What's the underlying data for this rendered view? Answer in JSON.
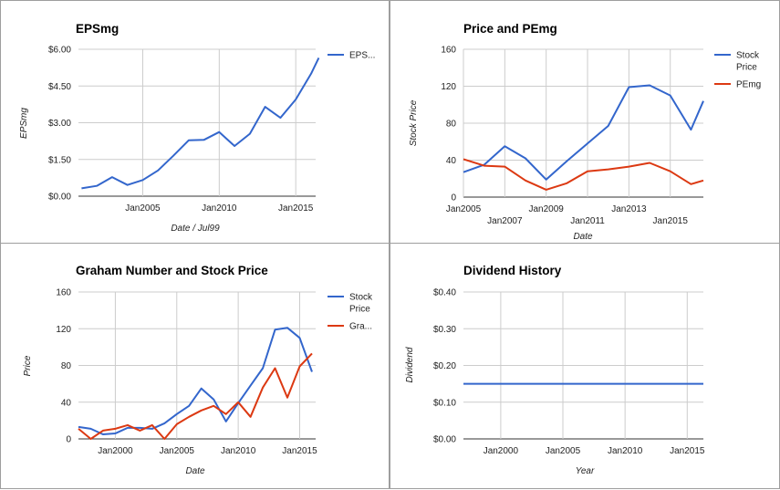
{
  "colors": {
    "blue": "#3366cc",
    "red": "#dc3912",
    "grid": "#cccccc",
    "baseline": "#333333",
    "border": "#9e9e9e"
  },
  "chart_data": [
    {
      "id": "eps",
      "type": "line",
      "title": "EPSmg",
      "xlabel": "Date / Jul99",
      "ylabel": "EPSmg",
      "ylim": [
        0,
        6
      ],
      "yticks": [
        0,
        1.5,
        3,
        4.5,
        6
      ],
      "ytick_labels": [
        "$0.00",
        "$1.50",
        "$3.00",
        "$4.50",
        "$6.00"
      ],
      "xlim": [
        2000.8,
        2016.3
      ],
      "xticks": [
        2005,
        2010,
        2015
      ],
      "xtick_labels": [
        "Jan2005",
        "Jan2010",
        "Jan2015"
      ],
      "legend": "right",
      "series": [
        {
          "name": "EPS...",
          "color": "#3366cc",
          "x": [
            2001,
            2002,
            2003,
            2004,
            2005,
            2006,
            2007,
            2008,
            2009,
            2010,
            2011,
            2012,
            2013,
            2014,
            2015,
            2016,
            2016.5
          ],
          "y": [
            0.32,
            0.42,
            0.78,
            0.46,
            0.66,
            1.05,
            1.65,
            2.28,
            2.3,
            2.62,
            2.05,
            2.55,
            3.65,
            3.2,
            3.95,
            5.0,
            5.65
          ]
        }
      ]
    },
    {
      "id": "pe",
      "type": "line",
      "title": "Price and PEmg",
      "xlabel": "Date",
      "ylabel": "Stock Price",
      "ylim": [
        0,
        160
      ],
      "yticks": [
        0,
        40,
        80,
        120,
        160
      ],
      "ytick_labels": [
        "0",
        "40",
        "80",
        "120",
        "160"
      ],
      "xlim": [
        2005,
        2016.6
      ],
      "xticks_top": [
        2005,
        2009,
        2013
      ],
      "xticks_top_labels": [
        "Jan2005",
        "Jan2009",
        "Jan2013"
      ],
      "xticks_bottom": [
        2007,
        2011,
        2015
      ],
      "xticks_bottom_labels": [
        "Jan2007",
        "Jan2011",
        "Jan2015"
      ],
      "legend": "right",
      "series": [
        {
          "name": "Stock Price",
          "name_lines": [
            "Stock",
            "Price"
          ],
          "color": "#3366cc",
          "x": [
            2005,
            2006,
            2007,
            2008,
            2009,
            2010,
            2011,
            2012,
            2013,
            2014,
            2015,
            2016,
            2016.6
          ],
          "y": [
            27,
            35,
            55,
            42,
            19,
            39,
            58,
            77,
            119,
            121,
            110,
            73,
            104
          ]
        },
        {
          "name": "PEmg",
          "name_lines": [
            "PEmg"
          ],
          "color": "#dc3912",
          "x": [
            2005,
            2006,
            2007,
            2008,
            2009,
            2010,
            2011,
            2012,
            2013,
            2014,
            2015,
            2016,
            2016.6
          ],
          "y": [
            41,
            34,
            33,
            18,
            8,
            15,
            28,
            30,
            33,
            37,
            28,
            14,
            18
          ]
        }
      ]
    },
    {
      "id": "graham",
      "type": "line",
      "title": "Graham Number and Stock Price",
      "xlabel": "Date",
      "ylabel": "Price",
      "ylim": [
        0,
        160
      ],
      "yticks": [
        0,
        40,
        80,
        120,
        160
      ],
      "ytick_labels": [
        "0",
        "40",
        "80",
        "120",
        "160"
      ],
      "xlim": [
        1997.0,
        2016.3
      ],
      "xticks": [
        2000,
        2005,
        2010,
        2015
      ],
      "xtick_labels": [
        "Jan2000",
        "Jan2005",
        "Jan2010",
        "Jan2015"
      ],
      "legend": "right",
      "series": [
        {
          "name": "Stock Price",
          "name_lines": [
            "Stock",
            "Price"
          ],
          "color": "#3366cc",
          "x": [
            1997,
            1998,
            1999,
            2000,
            2001,
            2002,
            2003,
            2004,
            2005,
            2006,
            2007,
            2008,
            2009,
            2010,
            2011,
            2012,
            2013,
            2014,
            2015,
            2016
          ],
          "y": [
            13,
            11,
            5,
            6,
            12,
            12,
            11,
            17,
            27,
            36,
            55,
            43,
            19,
            39,
            58,
            77,
            119,
            121,
            110,
            73
          ]
        },
        {
          "name": "Gra...",
          "name_lines": [
            "Gra..."
          ],
          "color": "#dc3912",
          "x": [
            1997,
            1998,
            1999,
            2000,
            2001,
            2002,
            2003,
            2004,
            2005,
            2006,
            2007,
            2008,
            2009,
            2010,
            2011,
            2012,
            2013,
            2014,
            2015,
            2016
          ],
          "y": [
            11,
            0,
            9,
            11,
            15,
            9,
            15,
            0,
            16,
            24,
            31,
            36,
            27,
            40,
            24,
            56,
            77,
            45,
            79,
            93
          ]
        }
      ]
    },
    {
      "id": "dividend",
      "type": "line",
      "title": "Dividend History",
      "xlabel": "Year",
      "ylabel": "Dividend",
      "ylim": [
        0,
        0.4
      ],
      "yticks": [
        0,
        0.1,
        0.2,
        0.3,
        0.4
      ],
      "ytick_labels": [
        "$0.00",
        "$0.10",
        "$0.20",
        "$0.30",
        "$0.40"
      ],
      "xlim": [
        1997.0,
        2016.3
      ],
      "xticks": [
        2000,
        2005,
        2010,
        2015
      ],
      "xtick_labels": [
        "Jan2000",
        "Jan2005",
        "Jan2010",
        "Jan2015"
      ],
      "legend": "none",
      "series": [
        {
          "color": "#3366cc",
          "x": [
            1997,
            2016.3
          ],
          "y": [
            0.15,
            0.15
          ]
        }
      ]
    }
  ]
}
